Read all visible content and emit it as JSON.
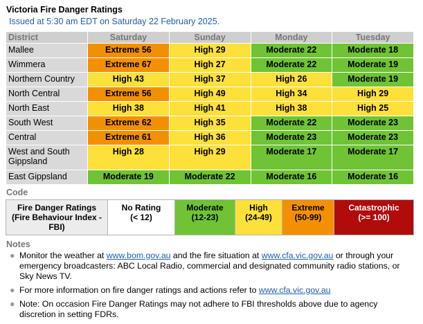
{
  "header": {
    "title": "Victoria Fire Danger Ratings",
    "issued": "Issued at 5:30 am EDT on Saturday 22 February 2025."
  },
  "table": {
    "headers": [
      "District",
      "Saturday",
      "Sunday",
      "Monday",
      "Tuesday"
    ],
    "rows": [
      {
        "district": "Mallee",
        "values": [
          {
            "text": "Extreme 56",
            "level": "extreme"
          },
          {
            "text": "High 29",
            "level": "high"
          },
          {
            "text": "Moderate 22",
            "level": "moderate"
          },
          {
            "text": "Moderate 18",
            "level": "moderate"
          }
        ]
      },
      {
        "district": "Wimmera",
        "values": [
          {
            "text": "Extreme 67",
            "level": "extreme"
          },
          {
            "text": "High 27",
            "level": "high"
          },
          {
            "text": "Moderate 22",
            "level": "moderate"
          },
          {
            "text": "Moderate 19",
            "level": "moderate"
          }
        ]
      },
      {
        "district": "Northern Country",
        "values": [
          {
            "text": "High 43",
            "level": "high"
          },
          {
            "text": "High 37",
            "level": "high"
          },
          {
            "text": "High 26",
            "level": "high"
          },
          {
            "text": "Moderate 19",
            "level": "moderate"
          }
        ]
      },
      {
        "district": "North Central",
        "values": [
          {
            "text": "Extreme 56",
            "level": "extreme"
          },
          {
            "text": "High 49",
            "level": "high"
          },
          {
            "text": "High 34",
            "level": "high"
          },
          {
            "text": "High 29",
            "level": "high"
          }
        ]
      },
      {
        "district": "North East",
        "values": [
          {
            "text": "High 38",
            "level": "high"
          },
          {
            "text": "High 41",
            "level": "high"
          },
          {
            "text": "High 38",
            "level": "high"
          },
          {
            "text": "High 25",
            "level": "high"
          }
        ]
      },
      {
        "district": "South West",
        "values": [
          {
            "text": "Extreme 62",
            "level": "extreme"
          },
          {
            "text": "High 35",
            "level": "high"
          },
          {
            "text": "Moderate 22",
            "level": "moderate"
          },
          {
            "text": "Moderate 23",
            "level": "moderate"
          }
        ]
      },
      {
        "district": "Central",
        "values": [
          {
            "text": "Extreme 61",
            "level": "extreme"
          },
          {
            "text": "High 36",
            "level": "high"
          },
          {
            "text": "Moderate 23",
            "level": "moderate"
          },
          {
            "text": "Moderate 23",
            "level": "moderate"
          }
        ]
      },
      {
        "district": "West and South Gippsland",
        "values": [
          {
            "text": "High 28",
            "level": "high"
          },
          {
            "text": "High 29",
            "level": "high"
          },
          {
            "text": "Moderate 17",
            "level": "moderate"
          },
          {
            "text": "Moderate 17",
            "level": "moderate"
          }
        ]
      },
      {
        "district": "East Gippsland",
        "values": [
          {
            "text": "Moderate 19",
            "level": "moderate"
          },
          {
            "text": "Moderate 22",
            "level": "moderate"
          },
          {
            "text": "Moderate 16",
            "level": "moderate"
          },
          {
            "text": "Moderate 16",
            "level": "moderate"
          }
        ]
      }
    ]
  },
  "code": {
    "heading": "Code",
    "label": "Fire Danger Ratings (Fire Behaviour Index - FBI)",
    "levels": [
      {
        "name": "No Rating",
        "range": "(< 12)",
        "color": "#ffffff"
      },
      {
        "name": "Moderate",
        "range": "(12-23)",
        "color": "#6fc335"
      },
      {
        "name": "High",
        "range": "(24-49)",
        "color": "#fde03a"
      },
      {
        "name": "Extreme",
        "range": "(50-99)",
        "color": "#f39000"
      },
      {
        "name": "Catastrophic",
        "range": "(>= 100)",
        "color": "#b00c0c"
      }
    ]
  },
  "notes": {
    "heading": "Notes",
    "items": [
      {
        "parts": [
          {
            "text": "Monitor the weather at "
          },
          {
            "text": "www.bom.gov.au",
            "link": true
          },
          {
            "text": " and the fire situation at "
          },
          {
            "text": "www.cfa.vic.gov.au",
            "link": true
          },
          {
            "text": " or through your emergency broadcasters: ABC Local Radio, commercial and designated community radio stations, or Sky News TV."
          }
        ]
      },
      {
        "parts": [
          {
            "text": "For more information on fire danger ratings and actions refer to "
          },
          {
            "text": "www.cfa.vic.gov.au",
            "link": true
          }
        ]
      },
      {
        "parts": [
          {
            "text": "Note: On occasion Fire Danger Ratings may not adhere to FBI thresholds above due to agency discretion in setting FDRs."
          }
        ]
      }
    ]
  },
  "colors": {
    "extreme": "#f39000",
    "high": "#fde03a",
    "moderate": "#6fc335",
    "catastrophic": "#b00c0c",
    "link": "#1f5fa8"
  }
}
